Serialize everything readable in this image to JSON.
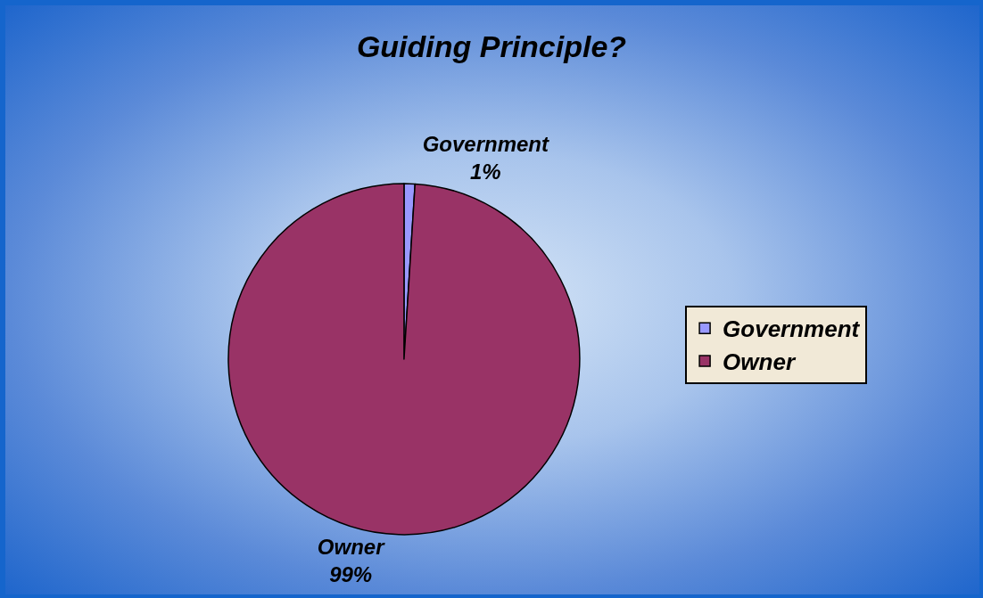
{
  "chart_data": {
    "type": "pie",
    "title": "Guiding Principle?",
    "categories": [
      "Government",
      "Owner"
    ],
    "values": [
      1,
      99
    ],
    "value_labels": [
      "1%",
      "99%"
    ],
    "colors": [
      "#9999ff",
      "#993366"
    ],
    "legend": "right"
  }
}
